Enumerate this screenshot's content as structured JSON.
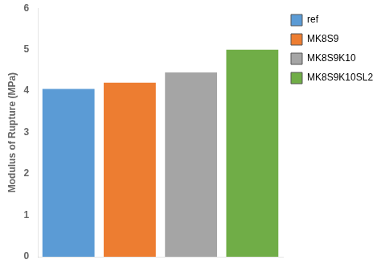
{
  "chart_data": {
    "type": "bar",
    "categories": [
      "ref",
      "MK8S9",
      "MK8S9K10",
      "MK8S9K10SL2"
    ],
    "values": [
      4.05,
      4.2,
      4.45,
      5.0
    ],
    "colors": [
      "#5B9BD5",
      "#ED7D31",
      "#A5A5A5",
      "#70AD47"
    ],
    "ylabel": "Modulus of Rupture (MPa)",
    "ylim": [
      0,
      6
    ],
    "yticks": [
      0,
      1,
      2,
      3,
      4,
      5,
      6
    ],
    "grid": false,
    "legend": "right",
    "tick_labels": "y"
  }
}
